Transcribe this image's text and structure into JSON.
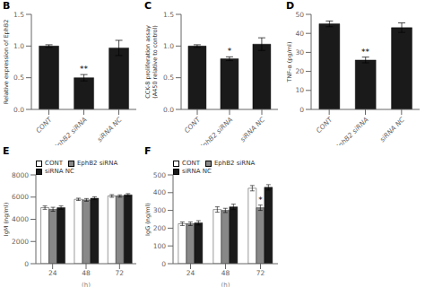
{
  "chart_data": [
    {
      "type": "bar",
      "title": "B",
      "categories": [
        "CONT",
        "EphB2 siRNA",
        "siRNA NC"
      ],
      "values": [
        1.0,
        0.5,
        0.97
      ],
      "errors": [
        0.02,
        0.05,
        0.12
      ],
      "color": "#1a1a1a",
      "ylabel": "Relative expression of EphB2",
      "ylim": [
        0,
        1.5
      ],
      "yticks": [
        {
          "value": 0,
          "label": "0.0"
        },
        0.5,
        {
          "value": 1,
          "label": "1.0"
        },
        1.5
      ],
      "annotations": [
        {
          "category": "EphB2 siRNA",
          "text": "**"
        }
      ]
    },
    {
      "type": "bar",
      "title": "C",
      "categories": [
        "CONT",
        "EphB2 siRNA",
        "siRNA NC"
      ],
      "values": [
        1.0,
        0.8,
        1.03
      ],
      "errors": [
        0.02,
        0.03,
        0.1
      ],
      "color": "#1a1a1a",
      "ylabel": "CCK-8 proliferation assay\n(A450 relative to control)",
      "ylim": [
        0,
        1.5
      ],
      "yticks": [
        {
          "value": 0,
          "label": "0.0"
        },
        0.5,
        {
          "value": 1,
          "label": "1.0"
        },
        1.5
      ],
      "annotations": [
        {
          "category": "EphB2 siRNA",
          "text": "*"
        }
      ]
    },
    {
      "type": "bar",
      "title": "D",
      "categories": [
        "CONT",
        "EphB2 siRNA",
        "siRNA NC"
      ],
      "values": [
        45.0,
        26.0,
        43.0
      ],
      "errors": [
        1.5,
        1.5,
        2.5
      ],
      "color": "#1a1a1a",
      "ylabel": "TNF-α (pg/ml)",
      "ylim": [
        0,
        50
      ],
      "yticks": [
        0,
        10,
        20,
        30,
        40,
        50
      ],
      "annotations": [
        {
          "category": "EphB2 siRNA",
          "text": "**"
        }
      ]
    },
    {
      "type": "bar",
      "title": "E",
      "categories": [
        "24",
        "48",
        "72"
      ],
      "series": [
        {
          "name": "CONT",
          "color": "#ffffff",
          "values": [
            5050,
            5800,
            6100
          ],
          "errors": [
            150,
            100,
            120
          ]
        },
        {
          "name": "EphB2 siRNA",
          "color": "#888888",
          "values": [
            4900,
            5750,
            6100
          ],
          "errors": [
            180,
            120,
            100
          ]
        },
        {
          "name": "siRNA NC",
          "color": "#1a1a1a",
          "values": [
            5050,
            5900,
            6200
          ],
          "errors": [
            150,
            130,
            110
          ]
        }
      ],
      "xlabel": "(h)",
      "ylabel": "IgM (ng/ml)",
      "ylim": [
        0,
        8000
      ],
      "yticks": [
        0,
        2000,
        4000,
        6000,
        8000
      ],
      "legend": "upper left"
    },
    {
      "type": "bar",
      "title": "F",
      "categories": [
        "24",
        "48",
        "72"
      ],
      "series": [
        {
          "name": "CONT",
          "color": "#ffffff",
          "values": [
            225,
            305,
            425
          ],
          "errors": [
            10,
            15,
            15
          ]
        },
        {
          "name": "EphB2 siRNA",
          "color": "#888888",
          "values": [
            225,
            300,
            315
          ],
          "errors": [
            10,
            12,
            15
          ]
        },
        {
          "name": "siRNA NC",
          "color": "#1a1a1a",
          "values": [
            230,
            320,
            430
          ],
          "errors": [
            12,
            15,
            15
          ]
        }
      ],
      "xlabel": "(h)",
      "ylabel": "IgG (ng/ml)",
      "ylim": [
        0,
        500
      ],
      "yticks": [
        0,
        100,
        200,
        300,
        400,
        500
      ],
      "legend": "upper left",
      "annotations": [
        {
          "category": "72",
          "series": "EphB2 siRNA",
          "text": "*"
        }
      ]
    }
  ]
}
